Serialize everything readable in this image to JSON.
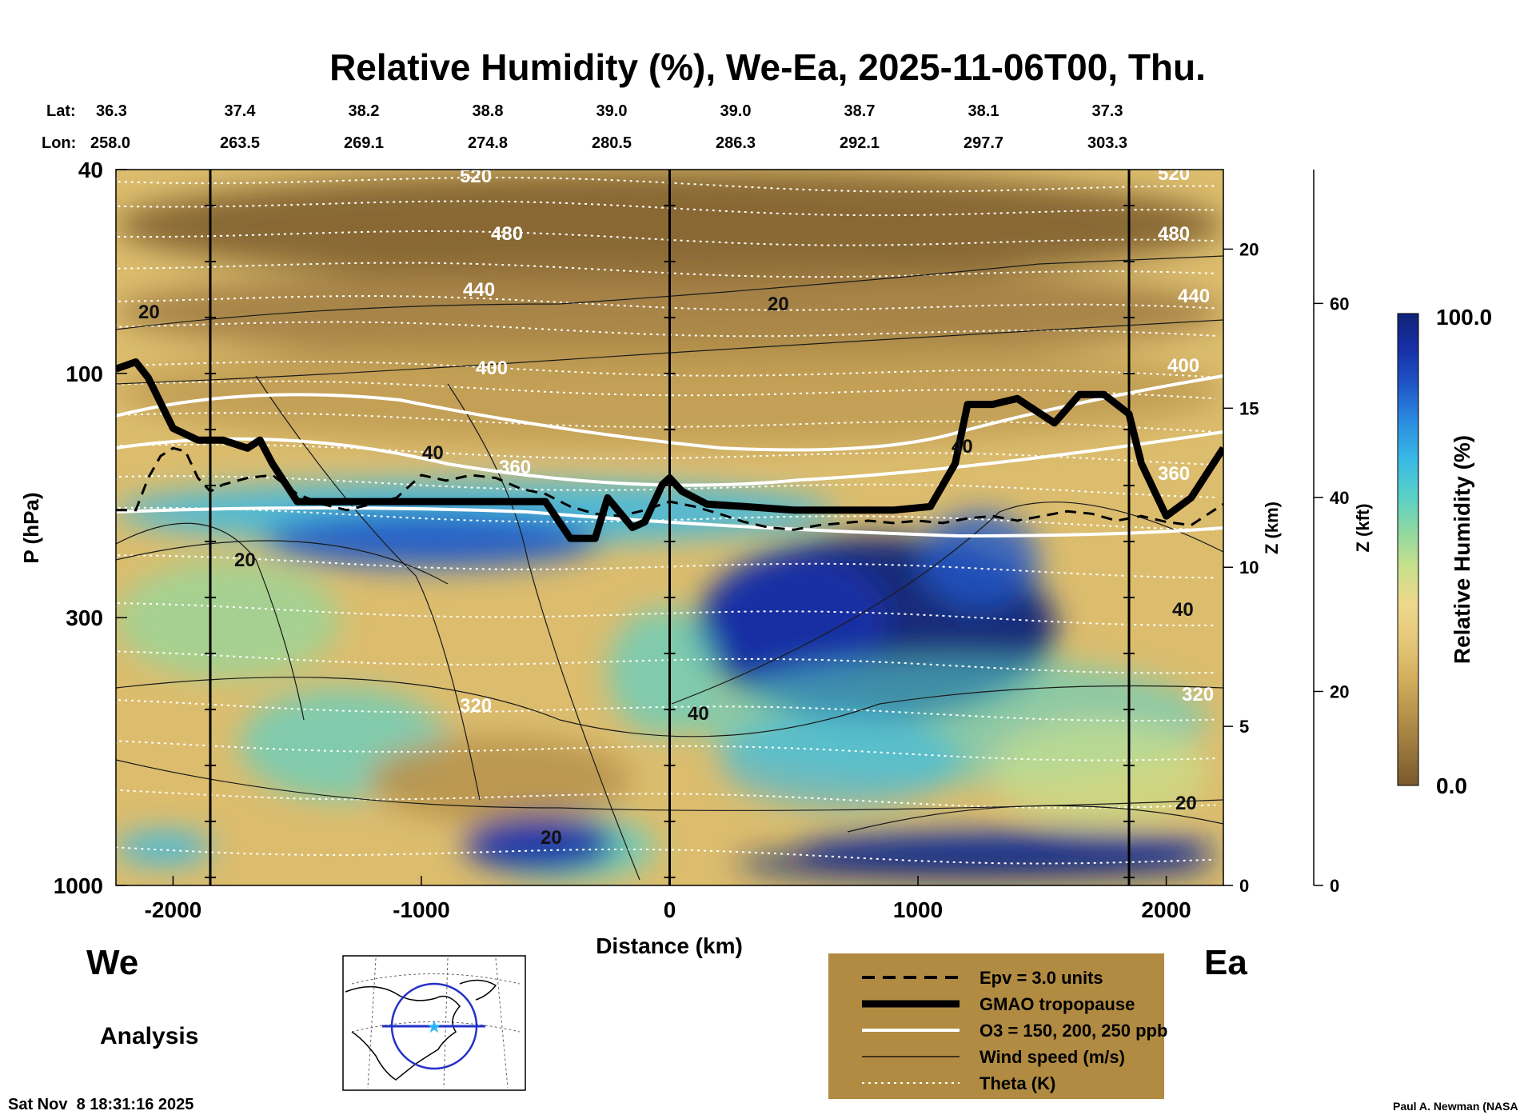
{
  "header": {
    "title": "Relative Humidity (%), We-Ea, 2025-11-06T00, Thu.",
    "lat_label": "Lat:",
    "lon_label": "Lon:",
    "lat_values": [
      "36.3",
      "37.4",
      "38.2",
      "38.8",
      "39.0",
      "39.0",
      "38.7",
      "38.1",
      "37.3"
    ],
    "lon_values": [
      "258.0",
      "263.5",
      "269.1",
      "274.8",
      "280.5",
      "286.3",
      "292.1",
      "297.7",
      "303.3"
    ]
  },
  "footer": {
    "left_direction": "We",
    "right_direction": "Ea",
    "analysis_label": "Analysis",
    "timestamp": "Sat Nov  8 18:31:16 2025",
    "credit": "Paul A. Newman (NASA"
  },
  "legend": {
    "items": [
      {
        "label": "Epv = 3.0 units",
        "style": "dashed"
      },
      {
        "label": "GMAO tropopause",
        "style": "thick"
      },
      {
        "label": "O3 = 150, 200, 250 ppb",
        "style": "white"
      },
      {
        "label": "Wind speed (m/s)",
        "style": "thin"
      },
      {
        "label": "Theta (K)",
        "style": "dotted"
      }
    ]
  },
  "colorbar": {
    "title": "Relative Humidity (%)",
    "max_label": "100.0",
    "min_label": "0.0",
    "colors": [
      "#7a5a2c",
      "#9a763d",
      "#b8944c",
      "#d4b060",
      "#e6c87a",
      "#eed88c",
      "#c9e08c",
      "#8fd8a0",
      "#58d0c8",
      "#38b8e4",
      "#2c8ee0",
      "#2058c8",
      "#1830a8",
      "#102478"
    ]
  },
  "chart_data": {
    "type": "heatmap",
    "title": "Relative Humidity (%), We-Ea, 2025-11-06T00, Thu.",
    "xlabel": "Distance (km)",
    "ylabel": "P (hPa)",
    "right_axis_1_label": "Z (km)",
    "right_axis_2_label": "Z (kft)",
    "x_range": [
      -2230,
      2230
    ],
    "x_ticks": [
      -2000,
      -1000,
      0,
      1000,
      2000
    ],
    "x_tick_labels": [
      "-2000",
      "-1000",
      "0",
      "1000",
      "2000"
    ],
    "y_scale": "log",
    "y_range": [
      1000,
      40
    ],
    "y_ticks": [
      40,
      100,
      300,
      1000
    ],
    "y_tick_labels": [
      "40",
      "100",
      "300",
      "1000"
    ],
    "z_km_ticks": [
      0,
      5,
      10,
      15,
      20
    ],
    "z_km_labels": [
      "0",
      "5",
      "10",
      "15",
      "20"
    ],
    "z_kft_ticks": [
      0,
      20,
      40,
      60
    ],
    "z_kft_labels": [
      "0",
      "20",
      "40",
      "60"
    ],
    "vertical_markers_km": [
      -1850,
      0,
      1850
    ],
    "tropopause": {
      "x": [
        -2230,
        -2150,
        -2100,
        -2000,
        -1900,
        -1800,
        -1700,
        -1650,
        -1600,
        -1500,
        -1300,
        -1000,
        -700,
        -500,
        -400,
        -300,
        -250,
        -150,
        -100,
        -30,
        0,
        50,
        150,
        300,
        500,
        700,
        900,
        1050,
        1150,
        1200,
        1300,
        1400,
        1550,
        1650,
        1750,
        1850,
        1900,
        2000,
        2100,
        2230
      ],
      "p": [
        98,
        95,
        102,
        128,
        135,
        135,
        140,
        135,
        150,
        178,
        178,
        178,
        178,
        178,
        210,
        210,
        175,
        200,
        195,
        165,
        160,
        170,
        180,
        182,
        185,
        185,
        185,
        182,
        150,
        115,
        115,
        112,
        125,
        110,
        110,
        120,
        150,
        190,
        175,
        140
      ]
    },
    "epv_3": {
      "x": [
        -2230,
        -2150,
        -2100,
        -2050,
        -2000,
        -1950,
        -1900,
        -1850,
        -1800,
        -1700,
        -1600,
        -1500,
        -1400,
        -1300,
        -1200,
        -1100,
        -1000,
        -900,
        -800,
        -700,
        -600,
        -500,
        -400,
        -300,
        -200,
        -100,
        0,
        100,
        200,
        300,
        400,
        500,
        600,
        700,
        800,
        900,
        1000,
        1100,
        1200,
        1300,
        1400,
        1500,
        1600,
        1700,
        1800,
        1900,
        2000,
        2100,
        2230
      ],
      "p": [
        185,
        185,
        160,
        145,
        140,
        142,
        160,
        170,
        165,
        160,
        158,
        172,
        180,
        185,
        180,
        175,
        158,
        162,
        158,
        160,
        168,
        172,
        182,
        188,
        190,
        185,
        178,
        182,
        188,
        195,
        200,
        202,
        198,
        196,
        194,
        196,
        194,
        196,
        192,
        190,
        194,
        190,
        186,
        188,
        194,
        190,
        195,
        198,
        180
      ]
    },
    "ozone_contours_ppb": [
      150,
      200,
      250
    ],
    "wind_labels": [
      20,
      40
    ],
    "theta_labels_K": [
      320,
      360,
      400,
      440,
      480,
      520
    ],
    "rh_range": [
      0,
      100
    ]
  }
}
